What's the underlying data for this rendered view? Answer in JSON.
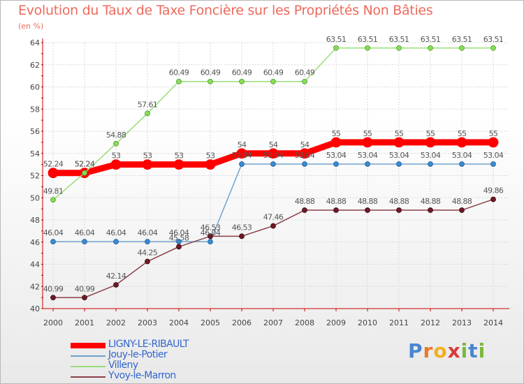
{
  "chart_data": {
    "type": "line",
    "title": "Evolution du Taux de Taxe Foncière sur les Propriétés Non Bâties",
    "subtitle": "(en %)",
    "xlabel": "",
    "ylabel": "(en %)",
    "x": [
      "2000",
      "2001",
      "2002",
      "2003",
      "2004",
      "2005",
      "2006",
      "2007",
      "2008",
      "2009",
      "2010",
      "2011",
      "2012",
      "2013",
      "2014"
    ],
    "ylim": [
      40,
      64
    ],
    "yticks": [
      40,
      42,
      44,
      46,
      48,
      50,
      52,
      54,
      56,
      58,
      60,
      62,
      64
    ],
    "grid": true,
    "series": [
      {
        "name": "LIGNY-LE-RIBAULT",
        "color": "#ff0000",
        "values": [
          52.24,
          52.24,
          53,
          53,
          53,
          53,
          54,
          54,
          54,
          55,
          55,
          55,
          55,
          55,
          55
        ],
        "labels": [
          "52.24",
          "52.24",
          "53",
          "53",
          "53",
          "53",
          "54",
          "54",
          "54",
          "55",
          "55",
          "55",
          "55",
          "55",
          "55"
        ]
      },
      {
        "name": "Jouy-le-Potier",
        "color": "#6fa3cf",
        "values": [
          46.04,
          46.04,
          46.04,
          46.04,
          46.04,
          46.04,
          53.04,
          53.04,
          53.04,
          53.04,
          53.04,
          53.04,
          53.04,
          53.04,
          53.04
        ],
        "labels": [
          "46.04",
          "46.04",
          "46.04",
          "46.04",
          "46.04",
          "46.04",
          "53.04",
          "53.04",
          "53.04",
          "53.04",
          "53.04",
          "53.04",
          "53.04",
          "53.04",
          "53.04"
        ]
      },
      {
        "name": "Villeny",
        "color": "#99dd77",
        "values": [
          49.81,
          52.24,
          54.88,
          57.61,
          60.49,
          60.49,
          60.49,
          60.49,
          60.49,
          63.51,
          63.51,
          63.51,
          63.51,
          63.51,
          63.51
        ],
        "labels": [
          "49.81",
          "52.24",
          "54.88",
          "57.61",
          "60.49",
          "60.49",
          "60.49",
          "60.49",
          "60.49",
          "63.51",
          "63.51",
          "63.51",
          "63.51",
          "63.51",
          "63.51"
        ]
      },
      {
        "name": "Yvoy-le-Marron",
        "color": "#8b4049",
        "values": [
          40.99,
          40.99,
          42.14,
          44.25,
          45.58,
          46.53,
          46.53,
          47.46,
          48.88,
          48.88,
          48.88,
          48.88,
          48.88,
          48.88,
          49.86
        ],
        "labels": [
          "40.99",
          "40.99",
          "42.14",
          "44.25",
          "45.58",
          "46.53",
          "46.53",
          "47.46",
          "48.88",
          "48.88",
          "48.88",
          "48.88",
          "48.88",
          "48.88",
          "49.86"
        ]
      }
    ]
  },
  "logo": {
    "text": "Proxiti",
    "letters": [
      "P",
      "r",
      "o",
      "x",
      "i",
      "t",
      "i"
    ],
    "colors": [
      "#4a86d0",
      "#e87a2a",
      "#f0b020",
      "#d83a3a",
      "#7ab83a",
      "#4a86d0",
      "#7ab83a"
    ]
  }
}
